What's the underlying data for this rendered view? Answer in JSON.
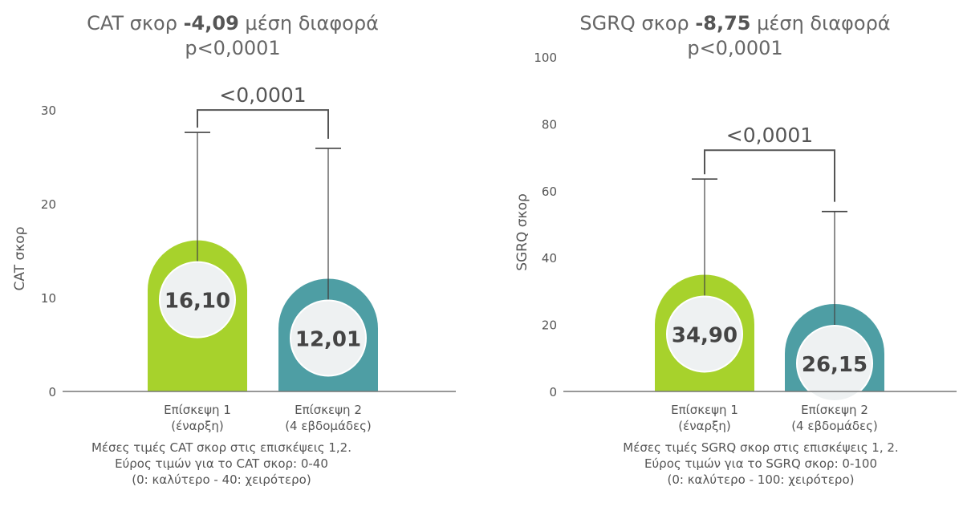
{
  "chart_data": [
    {
      "type": "bar",
      "title_prefix": "CAT σκορ",
      "title_value": "-4,09",
      "title_suffix": "μέση διαφορά",
      "title_pvalue": "p<0,0001",
      "ylabel": "CAT σκορ",
      "ylim": [
        0,
        30
      ],
      "yticks": [
        "0",
        "10",
        "20",
        "30"
      ],
      "categories": [
        "Επίσκεψη 1|(έναρξη)",
        "Επίσκεψη 2|(4 εβδομάδες)"
      ],
      "values": [
        16.1,
        12.01
      ],
      "value_labels": [
        "16,10",
        "12,01"
      ],
      "error_upper": [
        27.6,
        25.9
      ],
      "error_lower": [
        null,
        2.8
      ],
      "colors": [
        "#a7d22c",
        "#4e9ea4"
      ],
      "significance": "<0,0001",
      "notes": [
        "Μέσες τιμές CAT σκορ στις επισκέψεις 1,2.",
        "Εύρος τιμών για το CAT σκορ: 0-40",
        "(0: καλύτερο - 40: χειρότερο)"
      ]
    },
    {
      "type": "bar",
      "title_prefix": "SGRQ σκορ",
      "title_value": "-8,75",
      "title_suffix": "μέση διαφορά",
      "title_pvalue": "p<0,0001",
      "ylabel": "SGRQ σκορ",
      "ylim": [
        0,
        100
      ],
      "yticks": [
        "0",
        "20",
        "40",
        "60",
        "80",
        "100"
      ],
      "categories": [
        "Επίσκεψη 1|(έναρξη)",
        "Επίσκεψη 2|(4 εβδομάδες)"
      ],
      "values": [
        34.9,
        26.15
      ],
      "value_labels": [
        "34,90",
        "26,15"
      ],
      "error_upper": [
        63.5,
        53.8
      ],
      "error_lower": [
        null,
        null
      ],
      "colors": [
        "#a7d22c",
        "#4e9ea4"
      ],
      "significance": "<0,0001",
      "notes": [
        "Μέσες τιμές SGRQ σκορ στις επισκέψεις 1, 2.",
        "Εύρος τιμών για το SGRQ σκορ: 0-100",
        "(0: καλύτερο - 100: χειρότερο)"
      ]
    }
  ]
}
